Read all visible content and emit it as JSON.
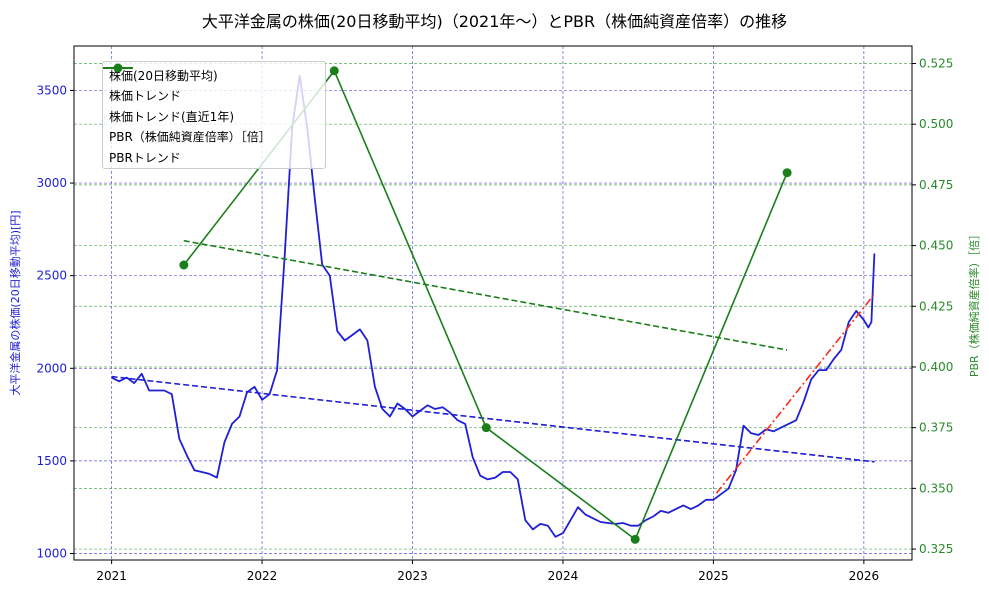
{
  "title": "大平洋金属の株価(20日移動平均)（2021年〜）とPBR（株価純資産倍率）の推移",
  "colors": {
    "price": "#1f1fd6",
    "price_trend": "#1f1fd6",
    "recent_trend": "#ff2a1a",
    "pbr": "#1a7f1a",
    "pbr_trend": "#1a7f1a",
    "grid_left": "#5a5ad6",
    "grid_right": "#5aa85a"
  },
  "legend": {
    "items": [
      {
        "label": "株価(20日移動平均)",
        "style": "solid-blue"
      },
      {
        "label": "株価トレンド",
        "style": "dashed-blue"
      },
      {
        "label": "株価トレンド(直近1年)",
        "style": "dashdot-red"
      },
      {
        "label": "PBR（株価純資産倍率）［倍］",
        "style": "solid-green-marker"
      },
      {
        "label": "PBRトレンド",
        "style": "dashed-green"
      }
    ]
  },
  "axes": {
    "left_label": "大平洋金属の株価(20日移動平均)[円]",
    "right_label": "PBR（株価純資産倍率）［倍］",
    "left_ticks": [
      "1000",
      "1500",
      "2000",
      "2500",
      "3000",
      "3500"
    ],
    "right_ticks": [
      "0.325",
      "0.350",
      "0.375",
      "0.400",
      "0.425",
      "0.450",
      "0.475",
      "0.500",
      "0.525"
    ],
    "x_ticks": [
      "2021",
      "2022",
      "2023",
      "2024",
      "2025",
      "2026"
    ]
  },
  "chart_data": {
    "type": "line",
    "title": "大平洋金属の株価(20日移動平均)（2021年〜）とPBR（株価純資産倍率）の推移",
    "xlabel": "",
    "ylabel": "大平洋金属の株価(20日移動平均)[円]",
    "ylabel_right": "PBR（株価純資産倍率）［倍］",
    "xlim": [
      2020.75,
      2026.32
    ],
    "ylim": [
      965,
      3740
    ],
    "ylim_right": [
      0.3205,
      0.5322
    ],
    "grid": true,
    "legend_position": "upper left",
    "series": [
      {
        "name": "株価(20日移動平均)",
        "axis": "left",
        "style": "solid",
        "x": [
          2021.0,
          2021.05,
          2021.1,
          2021.15,
          2021.2,
          2021.25,
          2021.3,
          2021.35,
          2021.4,
          2021.45,
          2021.5,
          2021.55,
          2021.6,
          2021.65,
          2021.7,
          2021.75,
          2021.8,
          2021.85,
          2021.9,
          2021.95,
          2022.0,
          2022.05,
          2022.1,
          2022.15,
          2022.2,
          2022.25,
          2022.3,
          2022.35,
          2022.4,
          2022.45,
          2022.5,
          2022.55,
          2022.6,
          2022.65,
          2022.7,
          2022.75,
          2022.8,
          2022.85,
          2022.9,
          2022.95,
          2023.0,
          2023.05,
          2023.1,
          2023.15,
          2023.2,
          2023.25,
          2023.3,
          2023.35,
          2023.4,
          2023.45,
          2023.5,
          2023.55,
          2023.6,
          2023.65,
          2023.7,
          2023.75,
          2023.8,
          2023.85,
          2023.9,
          2023.95,
          2024.0,
          2024.05,
          2024.1,
          2024.15,
          2024.2,
          2024.25,
          2024.3,
          2024.35,
          2024.4,
          2024.45,
          2024.5,
          2024.55,
          2024.6,
          2024.65,
          2024.7,
          2024.75,
          2024.8,
          2024.85,
          2024.9,
          2024.95,
          2025.0,
          2025.05,
          2025.1,
          2025.15,
          2025.2,
          2025.25,
          2025.3,
          2025.35,
          2025.4,
          2025.45,
          2025.5,
          2025.55,
          2025.6,
          2025.65,
          2025.7,
          2025.75,
          2025.8,
          2025.85,
          2025.9,
          2025.95,
          2026.0,
          2026.03,
          2026.05,
          2026.07
        ],
        "values": [
          1950,
          1930,
          1950,
          1920,
          1970,
          1880,
          1880,
          1880,
          1860,
          1620,
          1530,
          1450,
          1440,
          1430,
          1410,
          1600,
          1700,
          1740,
          1870,
          1900,
          1830,
          1860,
          1990,
          2600,
          3300,
          3580,
          3300,
          2920,
          2560,
          2500,
          2200,
          2150,
          2180,
          2210,
          2150,
          1900,
          1780,
          1740,
          1810,
          1780,
          1740,
          1770,
          1800,
          1780,
          1790,
          1760,
          1720,
          1700,
          1520,
          1420,
          1400,
          1410,
          1440,
          1440,
          1400,
          1180,
          1130,
          1160,
          1150,
          1090,
          1110,
          1180,
          1250,
          1210,
          1190,
          1170,
          1165,
          1160,
          1165,
          1150,
          1150,
          1180,
          1200,
          1230,
          1220,
          1240,
          1260,
          1240,
          1260,
          1290,
          1290,
          1320,
          1350,
          1450,
          1690,
          1650,
          1640,
          1670,
          1660,
          1680,
          1700,
          1720,
          1820,
          1940,
          1990,
          1990,
          2050,
          2100,
          2250,
          2310,
          2260,
          2220,
          2250,
          2620
        ]
      },
      {
        "name": "株価トレンド",
        "axis": "left",
        "style": "dashed",
        "x": [
          2021.0,
          2026.07
        ],
        "values": [
          1955,
          1495
        ]
      },
      {
        "name": "株価トレンド(直近1年)",
        "axis": "left",
        "style": "dashdot",
        "x": [
          2025.02,
          2026.07
        ],
        "values": [
          1325,
          2400
        ]
      },
      {
        "name": "PBR（株価純資産倍率）［倍］",
        "axis": "right",
        "style": "solid-marker",
        "x": [
          2021.48,
          2022.48,
          2023.49,
          2024.48,
          2025.49
        ],
        "values": [
          0.442,
          0.522,
          0.375,
          0.329,
          0.48
        ]
      },
      {
        "name": "PBRトレンド",
        "axis": "right",
        "style": "dashed",
        "x": [
          2021.48,
          2025.49
        ],
        "values": [
          0.452,
          0.407
        ]
      }
    ]
  }
}
